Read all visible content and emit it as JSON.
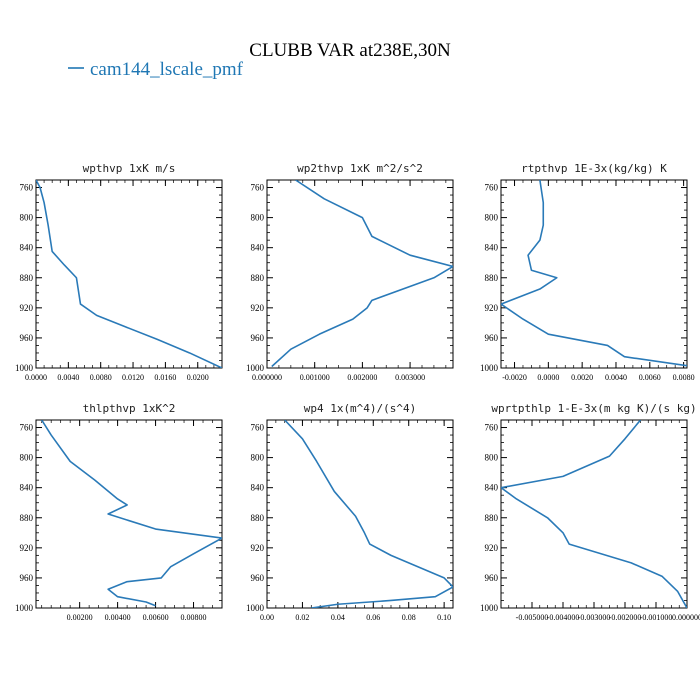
{
  "figure": {
    "title": "CLUBB VAR at238E,30N",
    "legend_label": "cam144_lscale_pmf",
    "legend_color": "#1f77b4",
    "line_color": "#2a7ab8"
  },
  "chart_data": [
    {
      "type": "line",
      "title": "wpthvp  1xK m/s",
      "xlabel": "",
      "ylabel": "",
      "xlim": [
        0,
        0.023
      ],
      "ylim": [
        1000,
        750
      ],
      "xticks": [
        0,
        0.004,
        0.008,
        0.012,
        0.016,
        0.02
      ],
      "xtick_labels": [
        "0.0000",
        "0.0040",
        "0.0080",
        "0.0120",
        "0.0160",
        "0.0200"
      ],
      "yticks": [
        760,
        800,
        840,
        880,
        920,
        960,
        1000
      ],
      "ytick_labels": [
        "760",
        "800",
        "840",
        "880",
        "920",
        "960",
        "1000"
      ],
      "series": [
        {
          "x": [
            0.0,
            0.0005,
            0.001,
            0.0015,
            0.002,
            0.0035,
            0.005,
            0.0055,
            0.0075,
            0.011,
            0.015,
            0.019,
            0.023
          ],
          "y": [
            750,
            760,
            780,
            810,
            845,
            863,
            880,
            915,
            930,
            945,
            962,
            980,
            1000
          ]
        }
      ]
    },
    {
      "type": "line",
      "title": "wp2thvp  1xK m^2/s^2",
      "xlabel": "",
      "ylabel": "",
      "xlim": [
        0,
        0.0039
      ],
      "ylim": [
        1000,
        750
      ],
      "xticks": [
        0,
        0.001,
        0.002,
        0.003
      ],
      "xtick_labels": [
        "0.000000",
        "0.001000",
        "0.002000",
        "0.003000"
      ],
      "yticks": [
        760,
        800,
        840,
        880,
        920,
        960,
        1000
      ],
      "ytick_labels": [
        "760",
        "800",
        "840",
        "880",
        "920",
        "960",
        "1000"
      ],
      "series": [
        {
          "x": [
            0.0006,
            0.0012,
            0.002,
            0.0022,
            0.003,
            0.0039,
            0.0035,
            0.0022,
            0.0021,
            0.0018,
            0.0011,
            0.0005,
            0.0001
          ],
          "y": [
            750,
            775,
            800,
            825,
            850,
            865,
            880,
            910,
            920,
            935,
            955,
            975,
            998
          ]
        }
      ]
    },
    {
      "type": "line",
      "title": "rtpthvp  1E-3x(kg/kg) K",
      "xlabel": "",
      "ylabel": "",
      "xlim": [
        -0.0028,
        0.0082
      ],
      "ylim": [
        1000,
        750
      ],
      "xticks": [
        -0.002,
        0,
        0.002,
        0.004,
        0.006,
        0.008
      ],
      "xtick_labels": [
        "-0.0020",
        "0.0000",
        "0.0020",
        "0.0040",
        "0.0060",
        "0.0080"
      ],
      "yticks": [
        760,
        800,
        840,
        880,
        920,
        960,
        1000
      ],
      "ytick_labels": [
        "760",
        "800",
        "840",
        "880",
        "920",
        "960",
        "1000"
      ],
      "series": [
        {
          "x": [
            -0.0005,
            -0.0003,
            -0.0003,
            -0.0005,
            -0.0012,
            -0.001,
            0.0005,
            -0.0005,
            -0.0028,
            -0.0015,
            0.0,
            0.0035,
            0.0045,
            0.0082
          ],
          "y": [
            750,
            780,
            810,
            830,
            850,
            870,
            880,
            895,
            915,
            935,
            955,
            970,
            985,
            997
          ]
        }
      ]
    },
    {
      "type": "line",
      "title": "thlpthvp  1xK^2",
      "xlabel": "",
      "ylabel": "",
      "xlim": [
        -0.0003,
        0.0095
      ],
      "ylim": [
        1000,
        750
      ],
      "xticks": [
        0.002,
        0.004,
        0.006,
        0.008
      ],
      "xtick_labels": [
        "0.00200",
        "0.00400",
        "0.00600",
        "0.00800"
      ],
      "yticks": [
        760,
        800,
        840,
        880,
        920,
        960,
        1000
      ],
      "ytick_labels": [
        "760",
        "800",
        "840",
        "880",
        "920",
        "960",
        "1000"
      ],
      "series": [
        {
          "x": [
            0.0,
            0.0005,
            0.0015,
            0.0028,
            0.004,
            0.0045,
            0.0035,
            0.006,
            0.0095,
            0.008,
            0.0068,
            0.0063,
            0.0045,
            0.0035,
            0.004,
            0.0055,
            0.006
          ],
          "y": [
            750,
            770,
            805,
            830,
            855,
            863,
            875,
            895,
            907,
            928,
            945,
            960,
            965,
            975,
            985,
            992,
            997
          ]
        }
      ]
    },
    {
      "type": "line",
      "title": "wp4  1x(m^4)/(s^4)",
      "xlabel": "",
      "ylabel": "",
      "xlim": [
        0,
        0.105
      ],
      "ylim": [
        1000,
        750
      ],
      "xticks": [
        0,
        0.02,
        0.04,
        0.06,
        0.08,
        0.1
      ],
      "xtick_labels": [
        "0.00",
        "0.02",
        "0.04",
        "0.06",
        "0.08",
        "0.10"
      ],
      "yticks": [
        760,
        800,
        840,
        880,
        920,
        960,
        1000
      ],
      "ytick_labels": [
        "760",
        "800",
        "840",
        "880",
        "920",
        "960",
        "1000"
      ],
      "series": [
        {
          "x": [
            0.01,
            0.02,
            0.028,
            0.038,
            0.05,
            0.055,
            0.058,
            0.07,
            0.085,
            0.1,
            0.105,
            0.095,
            0.07,
            0.04,
            0.025
          ],
          "y": [
            750,
            775,
            805,
            845,
            878,
            900,
            915,
            930,
            945,
            960,
            972,
            985,
            990,
            995,
            1000
          ]
        }
      ]
    },
    {
      "type": "line",
      "title": "wprtpthlp  1-E-3x(m kg K)/(s kg)",
      "xlabel": "",
      "ylabel": "",
      "xlim": [
        -0.006,
        0.0
      ],
      "ylim": [
        1000,
        750
      ],
      "xticks": [
        -0.005,
        -0.004,
        -0.003,
        -0.002,
        -0.001,
        0.0
      ],
      "xtick_labels": [
        "-0.005000",
        "-0.004000",
        "-0.003000",
        "-0.002000",
        "-0.001000",
        "0.000000"
      ],
      "yticks": [
        760,
        800,
        840,
        880,
        920,
        960,
        1000
      ],
      "ytick_labels": [
        "760",
        "800",
        "840",
        "880",
        "920",
        "960",
        "1000"
      ],
      "series": [
        {
          "x": [
            -0.0015,
            -0.002,
            -0.0025,
            -0.004,
            -0.006,
            -0.0055,
            -0.0045,
            -0.004,
            -0.0038,
            -0.003,
            -0.0018,
            -0.0008,
            -0.0003,
            0.0
          ],
          "y": [
            750,
            775,
            798,
            825,
            840,
            855,
            880,
            900,
            915,
            925,
            940,
            958,
            978,
            1000
          ]
        }
      ]
    }
  ]
}
